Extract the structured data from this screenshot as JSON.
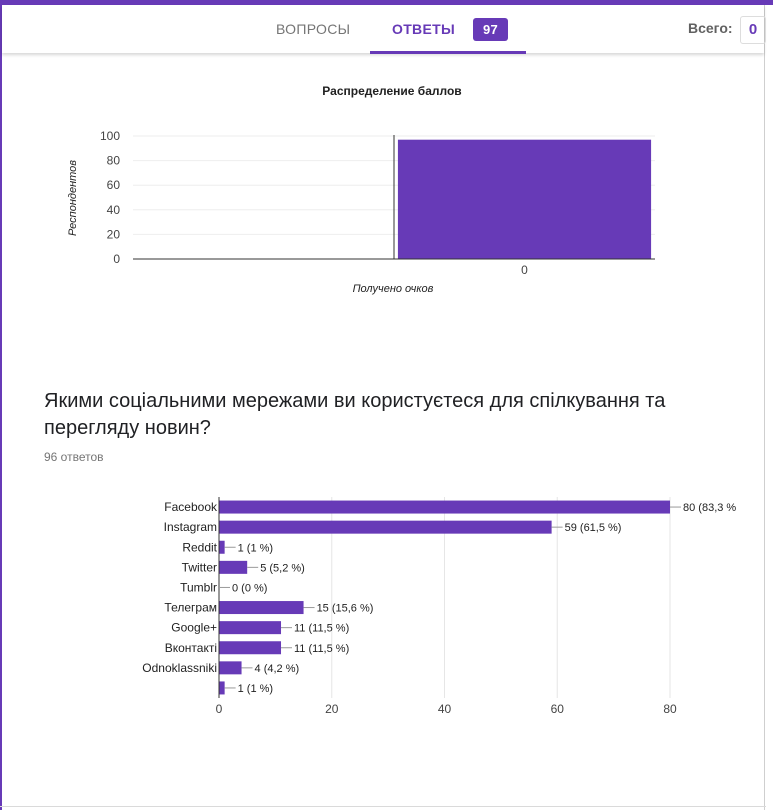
{
  "header": {
    "tabs": [
      {
        "label": "ВОПРОСЫ"
      },
      {
        "label": "ОТВЕТЫ",
        "badge": "97"
      }
    ],
    "total_label": "Всего:",
    "total_value": "0"
  },
  "question": {
    "title": "Якими соціальними мережами ви користуєтеся для спілкування та перегляду новин?",
    "answers_count": "96 ответов"
  },
  "colors": {
    "accent": "#673ab7"
  },
  "chart_data": [
    {
      "type": "bar",
      "title": "Распределение баллов",
      "xlabel": "Получено очков",
      "ylabel": "Респондентов",
      "categories": [
        "0"
      ],
      "values": [
        97
      ],
      "ylim": [
        0,
        100
      ],
      "yticks": [
        0,
        20,
        40,
        60,
        80,
        100
      ],
      "grid": true
    },
    {
      "type": "bar",
      "orientation": "horizontal",
      "categories": [
        "Facebook",
        "Instagram",
        "Reddit",
        "Twitter",
        "Tumblr",
        "Телеграм",
        "Google+",
        "Вконтакті",
        "Odnoklassniki",
        ""
      ],
      "values": [
        80,
        59,
        1,
        5,
        0,
        15,
        11,
        11,
        4,
        1
      ],
      "labels": [
        "80 (83,3 %",
        "59 (61,5 %)",
        "1 (1 %)",
        "5 (5,2 %)",
        "0 (0 %)",
        "15 (15,6 %)",
        "11 (11,5 %)",
        "11 (11,5 %)",
        "4 (4,2 %)",
        "1 (1 %)"
      ],
      "xlim": [
        0,
        80
      ],
      "xticks": [
        0,
        20,
        40,
        60,
        80
      ],
      "grid": true
    }
  ]
}
